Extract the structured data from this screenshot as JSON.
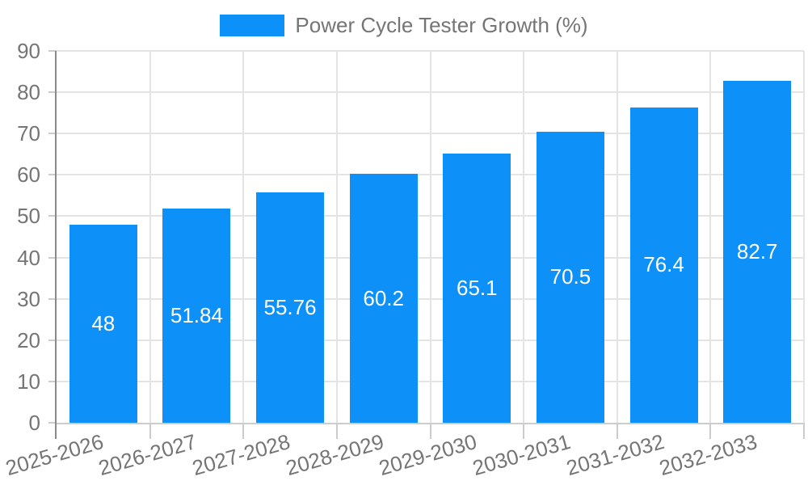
{
  "legend": {
    "label": "Power Cycle Tester Growth (%)"
  },
  "chart_data": {
    "type": "bar",
    "title": "Power Cycle Tester Growth (%)",
    "categories": [
      "2025-2026",
      "2026-2027",
      "2027-2028",
      "2028-2029",
      "2029-2030",
      "2030-2031",
      "2031-2032",
      "2032-2033"
    ],
    "series": [
      {
        "name": "Power Cycle Tester Growth (%)",
        "values": [
          48,
          51.84,
          55.76,
          60.2,
          65.1,
          70.5,
          76.4,
          82.7
        ]
      }
    ],
    "value_labels": [
      "48",
      "51.84",
      "55.76",
      "60.2",
      "65.1",
      "70.5",
      "76.4",
      "82.7"
    ],
    "xlabel": "",
    "ylabel": "",
    "ylim": [
      0,
      90
    ],
    "yticks": [
      0,
      10,
      20,
      30,
      40,
      50,
      60,
      70,
      80,
      90
    ],
    "grid": true,
    "legend_position": "top",
    "x_label_rotation_deg": -16,
    "colors": {
      "bar": "#0d90f8",
      "value_text": "#ffffff",
      "tick_text": "#757575",
      "gridline": "#e4e4e4",
      "tick_line": "#cccccc",
      "axis_line": "#8a8a8a",
      "background": "#ffffff"
    }
  }
}
